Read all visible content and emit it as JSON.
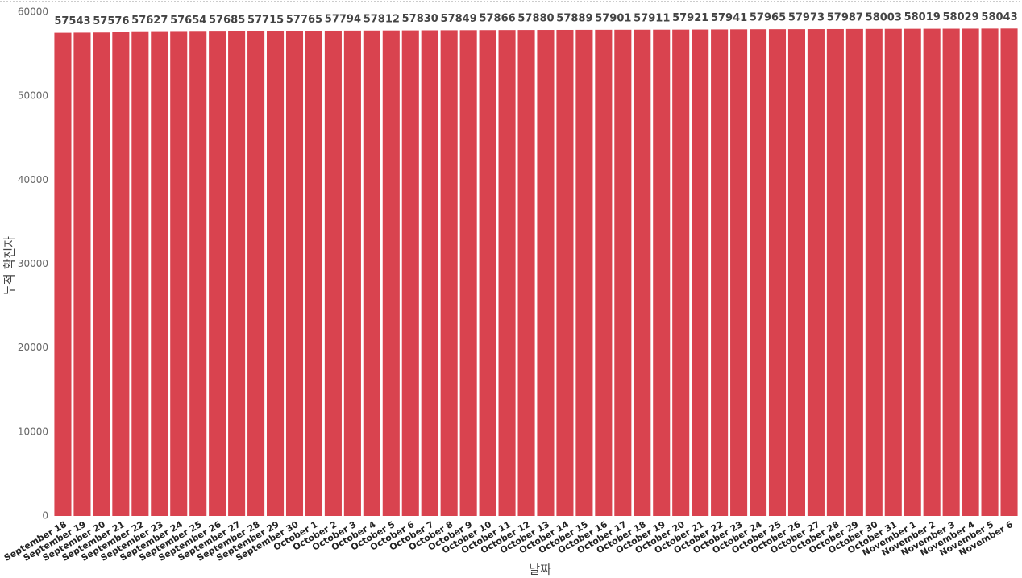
{
  "chart_data": {
    "type": "bar",
    "x_label": "날짜",
    "y_label": "누적 확진자",
    "categories": [
      "September 18",
      "September 19",
      "September 20",
      "September 21",
      "September 22",
      "September 23",
      "September 24",
      "September 25",
      "September 26",
      "September 27",
      "September 28",
      "September 29",
      "September 30",
      "October 1",
      "October 2",
      "October 3",
      "October 4",
      "October 5",
      "October 6",
      "October 7",
      "October 8",
      "October 9",
      "October 10",
      "October 11",
      "October 12",
      "October 13",
      "October 14",
      "October 15",
      "October 16",
      "October 17",
      "October 18",
      "October 19",
      "October 20",
      "October 21",
      "October 22",
      "October 23",
      "October 24",
      "October 25",
      "October 26",
      "October 27",
      "October 28",
      "October 29",
      "October 30",
      "October 31",
      "November 1",
      "November 2",
      "November 3",
      "November 4",
      "November 5",
      "November 6"
    ],
    "values": [
      57543,
      57560,
      57576,
      57600,
      57627,
      57640,
      57654,
      57670,
      57685,
      57700,
      57715,
      57740,
      57765,
      57780,
      57794,
      57803,
      57812,
      57821,
      57830,
      57840,
      57849,
      57858,
      57866,
      57873,
      57880,
      57885,
      57889,
      57895,
      57901,
      57906,
      57911,
      57916,
      57921,
      57931,
      57941,
      57953,
      57965,
      57969,
      57973,
      57980,
      57987,
      57995,
      58003,
      58011,
      58019,
      58024,
      58029,
      58036,
      58043,
      58050
    ],
    "color": "#d9434f",
    "ylim": [
      0,
      60000
    ],
    "yticks": [
      0,
      10000,
      20000,
      30000,
      40000,
      50000,
      60000
    ]
  }
}
